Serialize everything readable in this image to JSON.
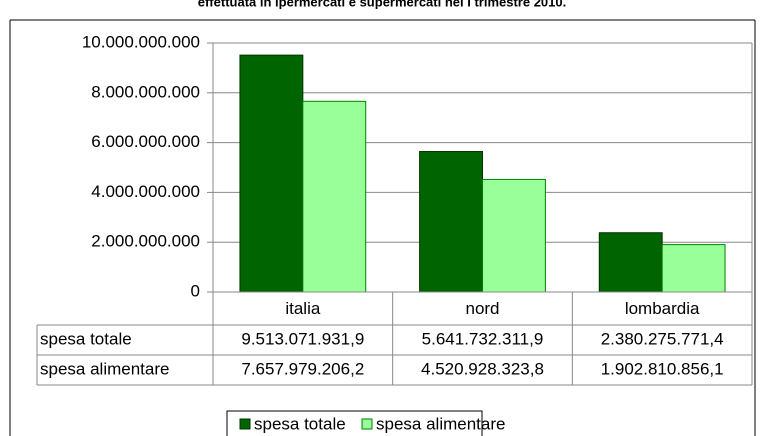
{
  "chart_data": {
    "type": "bar",
    "title": "effettuata in ipermercati e supermercati nel I trimestre 2010.",
    "categories": [
      "italia",
      "nord",
      "lombardia"
    ],
    "series": [
      {
        "name": "spesa totale",
        "color": "#006400",
        "values": [
          9513071931.9,
          5641732311.9,
          2380275771.4
        ],
        "value_labels": [
          "9.513.071.931,9",
          "5.641.732.311,9",
          "2.380.275.771,4"
        ]
      },
      {
        "name": "spesa alimentare",
        "color": "#99ff99",
        "values": [
          7657979206.2,
          4520928323.8,
          1902810856.1
        ],
        "value_labels": [
          "7.657.979.206,2",
          "4.520.928.323,8",
          "1.902.810.856,1"
        ]
      }
    ],
    "ylim": [
      0,
      10000000000
    ],
    "yticks": [
      0,
      {
        "value": 2000000000,
        "label": "2.000.000.000"
      },
      {
        "value": 4000000000,
        "label": "4.000.000.000"
      },
      {
        "value": 6000000000,
        "label": "6.000.000.000"
      },
      {
        "value": 8000000000,
        "label": "8.000.000.000"
      },
      {
        "value": 10000000000,
        "label": "10.000.000.000"
      }
    ],
    "grid": true
  }
}
